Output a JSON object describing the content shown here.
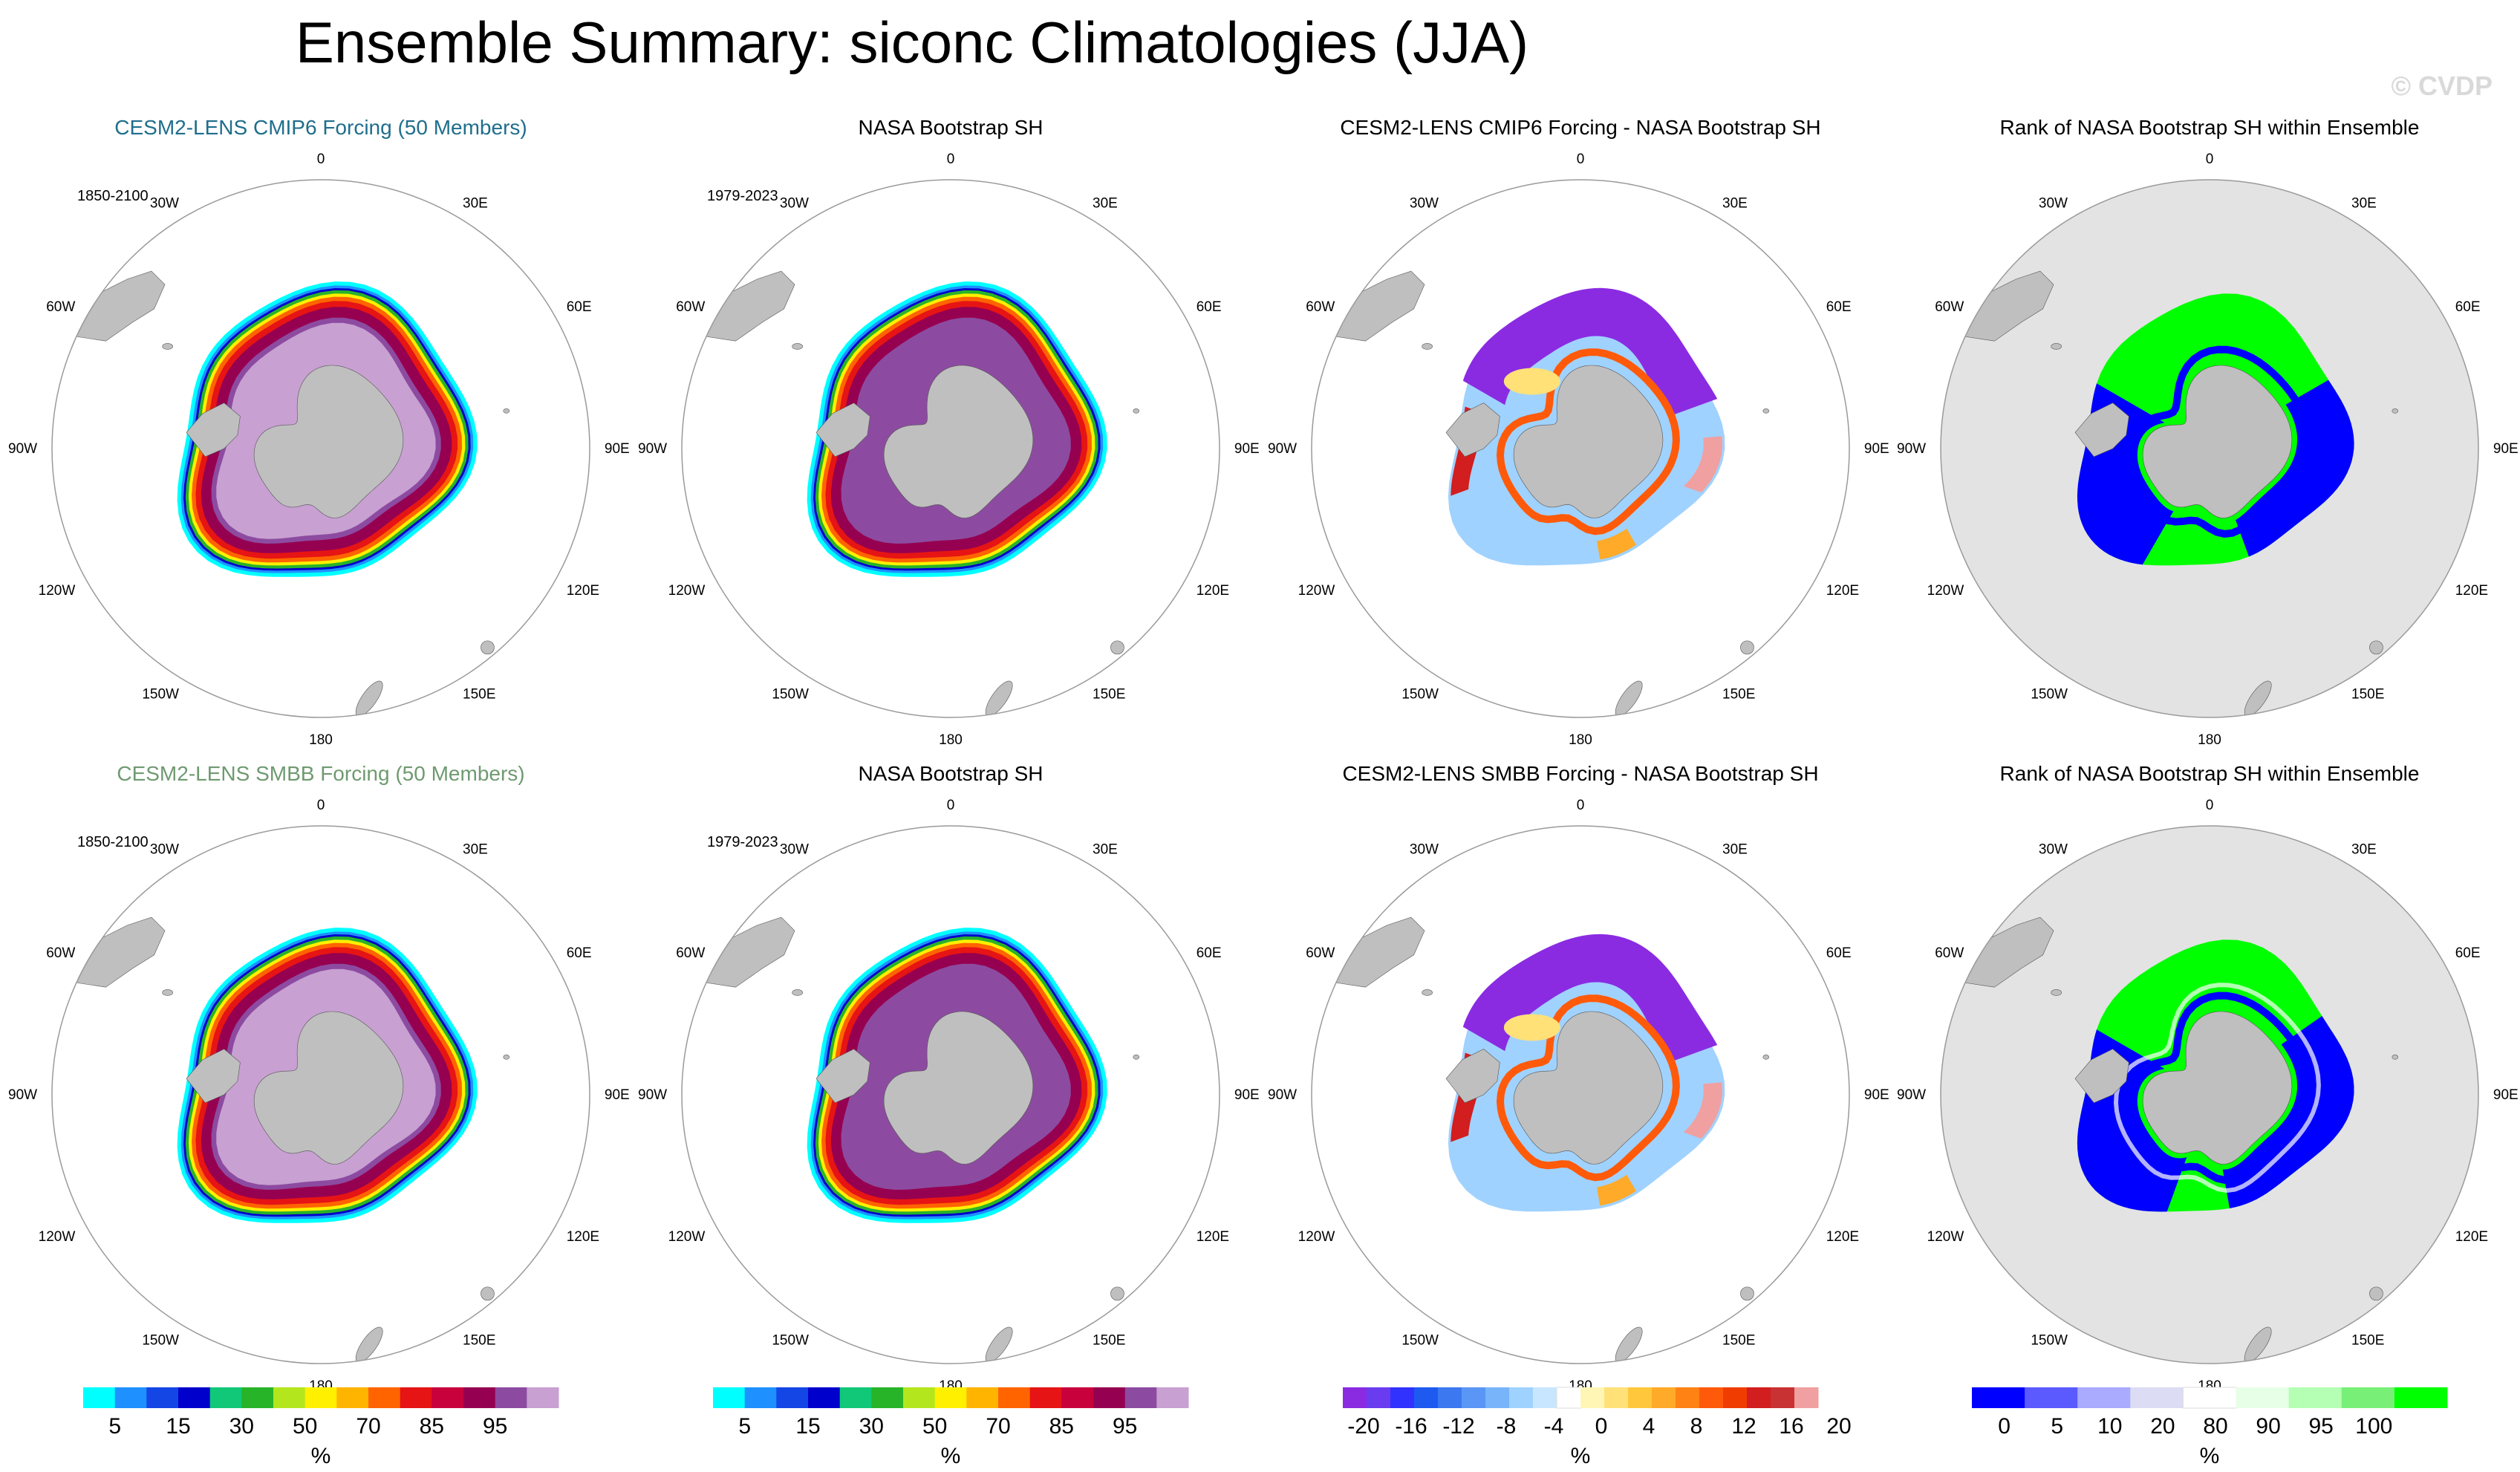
{
  "chart_data": {
    "type": "heatmap",
    "title": "Ensemble Summary: siconc Climatologies (JJA)",
    "watermark": "© CVDP",
    "longitude_labels": [
      "0",
      "30E",
      "60E",
      "90E",
      "120E",
      "150E",
      "180",
      "150W",
      "120W",
      "90W",
      "60W",
      "30W"
    ],
    "colors": {
      "land": "#bfbfbf",
      "ocean_rank_panel": "#e3e3e3",
      "title_row1_col1": "#1f6e8c",
      "title_row2_col1": "#6f9a70",
      "title_default": "#000000"
    },
    "panels": [
      {
        "row": 0,
        "col": 0,
        "title": "CESM2-LENS CMIP6 Forcing (50 Members)",
        "period": "1850-2100",
        "field": "conc",
        "style": "model1"
      },
      {
        "row": 0,
        "col": 1,
        "title": "NASA Bootstrap SH",
        "period": "1979-2023",
        "field": "conc",
        "style": "obs"
      },
      {
        "row": 0,
        "col": 2,
        "title": "CESM2-LENS CMIP6 Forcing - NASA Bootstrap SH",
        "period": "",
        "field": "diff",
        "style": "diff1"
      },
      {
        "row": 0,
        "col": 3,
        "title": "Rank of NASA Bootstrap SH within Ensemble",
        "period": "",
        "field": "rank",
        "style": "rank1"
      },
      {
        "row": 1,
        "col": 0,
        "title": "CESM2-LENS SMBB Forcing (50 Members)",
        "period": "1850-2100",
        "field": "conc",
        "style": "model2"
      },
      {
        "row": 1,
        "col": 1,
        "title": "NASA Bootstrap SH",
        "period": "1979-2023",
        "field": "conc",
        "style": "obs"
      },
      {
        "row": 1,
        "col": 2,
        "title": "CESM2-LENS SMBB Forcing - NASA Bootstrap SH",
        "period": "",
        "field": "diff",
        "style": "diff2"
      },
      {
        "row": 1,
        "col": 3,
        "title": "Rank of NASA Bootstrap SH within Ensemble",
        "period": "",
        "field": "rank",
        "style": "rank2"
      }
    ],
    "colorbars": [
      {
        "name": "conc-colorbar-1",
        "unit": "%",
        "labels": [
          "5",
          "15",
          "30",
          "50",
          "70",
          "85",
          "95"
        ],
        "colors": [
          "#00ffff",
          "#1e90ff",
          "#1446e6",
          "#0000cc",
          "#10c878",
          "#28b428",
          "#b4e61e",
          "#fff000",
          "#ffb400",
          "#ff6400",
          "#e61414",
          "#c8003c",
          "#960050",
          "#8c4ba0",
          "#c8a0d2"
        ]
      },
      {
        "name": "conc-colorbar-2",
        "unit": "%",
        "labels": [
          "5",
          "15",
          "30",
          "50",
          "70",
          "85",
          "95"
        ],
        "colors": [
          "#00ffff",
          "#1e90ff",
          "#1446e6",
          "#0000cc",
          "#10c878",
          "#28b428",
          "#b4e61e",
          "#fff000",
          "#ffb400",
          "#ff6400",
          "#e61414",
          "#c8003c",
          "#960050",
          "#8c4ba0",
          "#c8a0d2"
        ]
      },
      {
        "name": "diff-colorbar",
        "unit": "%",
        "labels": [
          "-20",
          "-16",
          "-12",
          "-8",
          "-4",
          "0",
          "4",
          "8",
          "12",
          "16",
          "20"
        ],
        "colors": [
          "#8a2be2",
          "#6a3cf0",
          "#3232ff",
          "#1e5af0",
          "#3c78f0",
          "#5a96f5",
          "#78b4fa",
          "#a0d2ff",
          "#c8e6ff",
          "#ffffff",
          "#fff5b4",
          "#ffe178",
          "#ffc83c",
          "#ffaa28",
          "#ff8214",
          "#ff5a0a",
          "#f03c00",
          "#d21e1e",
          "#c83232",
          "#f0a0a0"
        ]
      },
      {
        "name": "rank-colorbar",
        "unit": "%",
        "labels": [
          "0",
          "5",
          "10",
          "20",
          "80",
          "90",
          "95",
          "100"
        ],
        "colors": [
          "#0000ff",
          "#5a5aff",
          "#aaaaff",
          "#dcdcf5",
          "#ffffff",
          "#e6ffe6",
          "#b4ffb4",
          "#78f078",
          "#00ff00"
        ]
      }
    ]
  }
}
